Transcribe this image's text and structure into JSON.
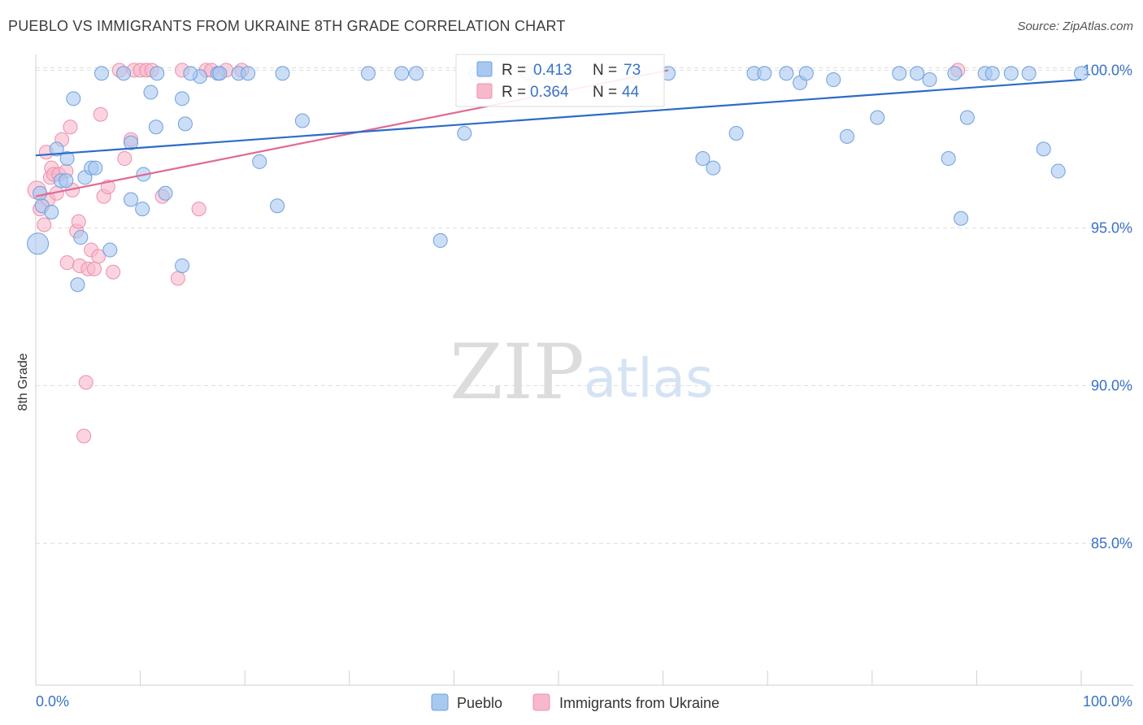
{
  "title": "PUEBLO VS IMMIGRANTS FROM UKRAINE 8TH GRADE CORRELATION CHART",
  "source": "Source: ZipAtlas.com",
  "watermark": {
    "zip": "ZIP",
    "atlas": "atlas"
  },
  "colors": {
    "pueblo_fill": "#a8c8f0",
    "pueblo_stroke": "#6f9fe0",
    "pueblo_line": "#2b6cc8",
    "ukraine_fill": "#f8b8cc",
    "ukraine_stroke": "#ec8fab",
    "ukraine_line": "#e06a92",
    "grid": "#dddddd",
    "axis_text": "#3a72c4"
  },
  "legend": [
    {
      "r_label": "R =",
      "r_value": "0.413",
      "n_label": "N =",
      "n_value": "73"
    },
    {
      "r_label": "R =",
      "r_value": "0.364",
      "n_label": "N =",
      "n_value": "44"
    }
  ],
  "chart_data": {
    "type": "scatter",
    "title": "PUEBLO VS IMMIGRANTS FROM UKRAINE 8TH GRADE CORRELATION CHART",
    "xlabel": "",
    "ylabel": "8th Grade",
    "xlim": [
      0,
      100
    ],
    "ylim": [
      80.5,
      100.5
    ],
    "x_tick_labels": [
      "0.0%",
      "100.0%"
    ],
    "y_ticks": [
      100,
      95,
      90,
      85
    ],
    "y_tick_labels": [
      "100.0%",
      "95.0%",
      "90.0%",
      "85.0%"
    ],
    "grid": true,
    "legend_position": "bottom",
    "series": [
      {
        "name": "Pueblo",
        "r": 0.413,
        "n": 73,
        "trend": [
          [
            0,
            97.3
          ],
          [
            100,
            99.7
          ]
        ],
        "points": [
          [
            0.2,
            94.5
          ],
          [
            0.6,
            95.7
          ],
          [
            1.5,
            95.5
          ],
          [
            2,
            97.5
          ],
          [
            2.4,
            96.5
          ],
          [
            3,
            97.2
          ],
          [
            3.6,
            99.1
          ],
          [
            4.3,
            94.7
          ],
          [
            4,
            93.2
          ],
          [
            4.7,
            96.6
          ],
          [
            5.3,
            96.9
          ],
          [
            5.7,
            96.9
          ],
          [
            7.1,
            94.3
          ],
          [
            6.3,
            99.9
          ],
          [
            8.4,
            99.9
          ],
          [
            9.1,
            95.9
          ],
          [
            9.1,
            97.7
          ],
          [
            10.2,
            95.6
          ],
          [
            10.3,
            96.7
          ],
          [
            11,
            99.3
          ],
          [
            11.5,
            98.2
          ],
          [
            11.6,
            99.9
          ],
          [
            12.4,
            96.1
          ],
          [
            14,
            99.1
          ],
          [
            14.3,
            98.3
          ],
          [
            14,
            93.8
          ],
          [
            15.7,
            99.8
          ],
          [
            17.4,
            99.9
          ],
          [
            17.6,
            99.9
          ],
          [
            19.4,
            99.9
          ],
          [
            20.3,
            99.9
          ],
          [
            21.4,
            97.1
          ],
          [
            23.1,
            95.7
          ],
          [
            23.6,
            99.9
          ],
          [
            25.5,
            98.4
          ],
          [
            31.8,
            99.9
          ],
          [
            35,
            99.9
          ],
          [
            36.4,
            99.9
          ],
          [
            38.7,
            94.6
          ],
          [
            41,
            98
          ],
          [
            42.1,
            99.9
          ],
          [
            47,
            99.9
          ],
          [
            49.2,
            99.9
          ],
          [
            50.5,
            99.9
          ],
          [
            60.5,
            99.9
          ],
          [
            63.8,
            97.2
          ],
          [
            64.8,
            96.9
          ],
          [
            67,
            98
          ],
          [
            68.7,
            99.9
          ],
          [
            69.7,
            99.9
          ],
          [
            71.8,
            99.9
          ],
          [
            73.1,
            99.6
          ],
          [
            73.7,
            99.9
          ],
          [
            76.3,
            99.7
          ],
          [
            77.6,
            97.9
          ],
          [
            80.5,
            98.5
          ],
          [
            82.6,
            99.9
          ],
          [
            84.3,
            99.9
          ],
          [
            85.5,
            99.7
          ],
          [
            87.3,
            97.2
          ],
          [
            87.9,
            99.9
          ],
          [
            88.5,
            95.3
          ],
          [
            89.1,
            98.5
          ],
          [
            90.8,
            99.9
          ],
          [
            91.5,
            99.9
          ],
          [
            93.3,
            99.9
          ],
          [
            95,
            99.9
          ],
          [
            96.4,
            97.5
          ],
          [
            97.8,
            96.8
          ],
          [
            100,
            99.9
          ],
          [
            0.4,
            96.1
          ],
          [
            2.9,
            96.5
          ],
          [
            14.8,
            99.9
          ]
        ]
      },
      {
        "name": "Immigrants from Ukraine",
        "r": 0.364,
        "n": 44,
        "trend": [
          [
            0,
            96
          ],
          [
            60.5,
            100
          ]
        ],
        "points": [
          [
            0.1,
            96.2
          ],
          [
            0.4,
            95.6
          ],
          [
            0.8,
            95.1
          ],
          [
            1,
            97.4
          ],
          [
            1.2,
            95.9
          ],
          [
            1.4,
            96.6
          ],
          [
            1.5,
            96.9
          ],
          [
            1.7,
            96.7
          ],
          [
            2,
            96.1
          ],
          [
            2.2,
            96.7
          ],
          [
            2.5,
            97.8
          ],
          [
            2.9,
            96.8
          ],
          [
            3,
            93.9
          ],
          [
            3.3,
            98.2
          ],
          [
            3.5,
            96.2
          ],
          [
            3.9,
            94.9
          ],
          [
            4.1,
            95.2
          ],
          [
            4.2,
            93.8
          ],
          [
            4.6,
            88.4
          ],
          [
            4.8,
            90.1
          ],
          [
            5,
            93.7
          ],
          [
            5.3,
            94.3
          ],
          [
            5.6,
            93.7
          ],
          [
            6,
            94.1
          ],
          [
            6.2,
            98.6
          ],
          [
            6.5,
            96
          ],
          [
            6.9,
            96.3
          ],
          [
            7.4,
            93.6
          ],
          [
            8,
            100
          ],
          [
            8.5,
            97.2
          ],
          [
            9.1,
            97.8
          ],
          [
            9.4,
            100
          ],
          [
            10,
            100
          ],
          [
            10.6,
            100
          ],
          [
            11.1,
            100
          ],
          [
            12.1,
            96
          ],
          [
            13.6,
            93.4
          ],
          [
            14,
            100
          ],
          [
            15.6,
            95.6
          ],
          [
            16.3,
            100
          ],
          [
            16.8,
            100
          ],
          [
            18.2,
            100
          ],
          [
            19.7,
            100
          ],
          [
            88.2,
            100
          ]
        ]
      }
    ]
  }
}
